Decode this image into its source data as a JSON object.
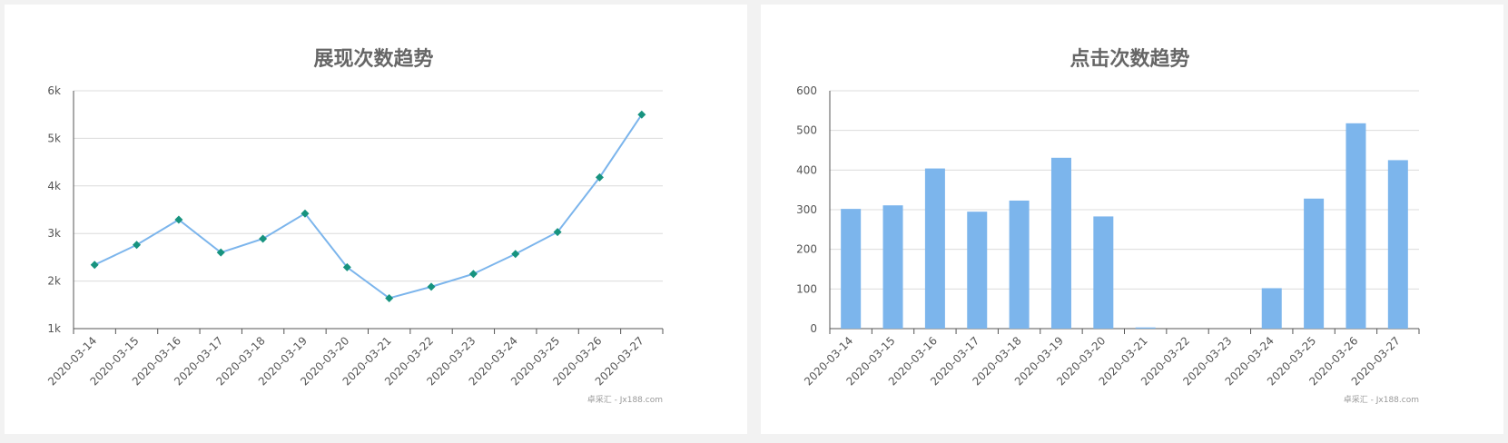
{
  "chart_data": [
    {
      "type": "line",
      "title": "展现次数趋势",
      "categories": [
        "2020-03-14",
        "2020-03-15",
        "2020-03-16",
        "2020-03-17",
        "2020-03-18",
        "2020-03-19",
        "2020-03-20",
        "2020-03-21",
        "2020-03-22",
        "2020-03-23",
        "2020-03-24",
        "2020-03-25",
        "2020-03-26",
        "2020-03-27"
      ],
      "series": [
        {
          "values": [
            2340,
            2760,
            3290,
            2600,
            2890,
            3420,
            2290,
            1640,
            1880,
            2150,
            2570,
            3030,
            4180,
            5500
          ]
        }
      ],
      "ylim": [
        1000,
        6000
      ],
      "yticks": [
        1000,
        2000,
        3000,
        4000,
        5000,
        6000
      ],
      "ytick_labels": [
        "1k",
        "2k",
        "3k",
        "4k",
        "5k",
        "6k"
      ],
      "grid": true,
      "credit": "卓采汇 - Jx188.com",
      "colors": {
        "line": "#7cb5ec",
        "marker": "#17937f"
      }
    },
    {
      "type": "bar",
      "title": "点击次数趋势",
      "categories": [
        "2020-03-14",
        "2020-03-15",
        "2020-03-16",
        "2020-03-17",
        "2020-03-18",
        "2020-03-19",
        "2020-03-20",
        "2020-03-21",
        "2020-03-22",
        "2020-03-23",
        "2020-03-24",
        "2020-03-25",
        "2020-03-26",
        "2020-03-27"
      ],
      "series": [
        {
          "values": [
            302,
            311,
            404,
            295,
            323,
            431,
            283,
            3,
            0,
            0,
            102,
            328,
            518,
            425
          ]
        }
      ],
      "ylim": [
        0,
        600
      ],
      "yticks": [
        0,
        100,
        200,
        300,
        400,
        500,
        600
      ],
      "ytick_labels": [
        "0",
        "100",
        "200",
        "300",
        "400",
        "500",
        "600"
      ],
      "grid": true,
      "credit": "卓采汇 - Jx188.com",
      "colors": {
        "bar": "#7cb5ec"
      }
    }
  ]
}
